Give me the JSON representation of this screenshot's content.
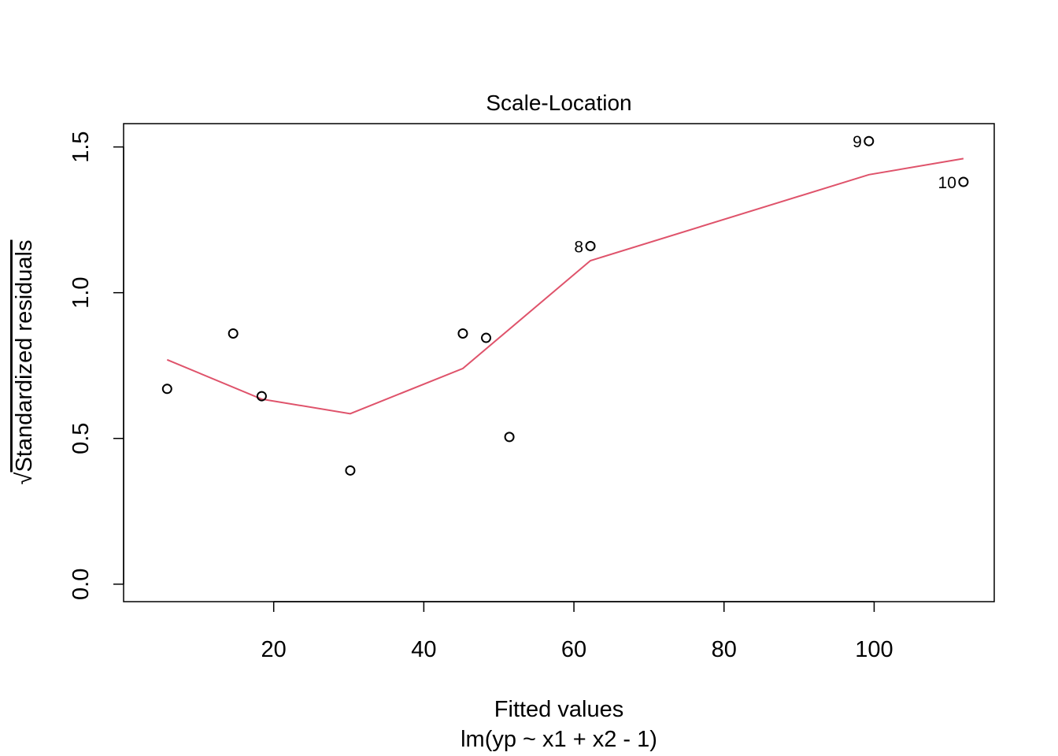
{
  "chart_data": {
    "type": "scatter",
    "title": "Scale-Location",
    "xlabel": "Fitted values",
    "sublabel": "lm(yp ~ x1 + x2 - 1)",
    "ylabel": "Standardized residuals",
    "ylabel_prefix": "√",
    "xlim": [
      0,
      116
    ],
    "ylim": [
      -0.06,
      1.58
    ],
    "x_ticks": [
      20,
      40,
      60,
      80,
      100
    ],
    "y_ticks": [
      0.0,
      0.5,
      1.0,
      1.5
    ],
    "x_tick_labels": [
      "20",
      "40",
      "60",
      "80",
      "100"
    ],
    "y_tick_labels": [
      "0.0",
      "0.5",
      "1.0",
      "1.5"
    ],
    "grid": false,
    "points": [
      {
        "x": 5.8,
        "y": 0.67,
        "label": ""
      },
      {
        "x": 14.6,
        "y": 0.86,
        "label": ""
      },
      {
        "x": 18.4,
        "y": 0.645,
        "label": ""
      },
      {
        "x": 30.2,
        "y": 0.39,
        "label": ""
      },
      {
        "x": 45.2,
        "y": 0.86,
        "label": ""
      },
      {
        "x": 48.3,
        "y": 0.845,
        "label": ""
      },
      {
        "x": 51.4,
        "y": 0.505,
        "label": ""
      },
      {
        "x": 62.2,
        "y": 1.16,
        "label": "8"
      },
      {
        "x": 99.3,
        "y": 1.52,
        "label": "9"
      },
      {
        "x": 111.9,
        "y": 1.38,
        "label": "10"
      }
    ],
    "smooth_line": {
      "color": "#DF536B",
      "x": [
        5.8,
        18.4,
        30.2,
        45.2,
        62.2,
        99.3,
        111.9
      ],
      "y": [
        0.77,
        0.635,
        0.585,
        0.74,
        1.11,
        1.405,
        1.46
      ]
    }
  }
}
